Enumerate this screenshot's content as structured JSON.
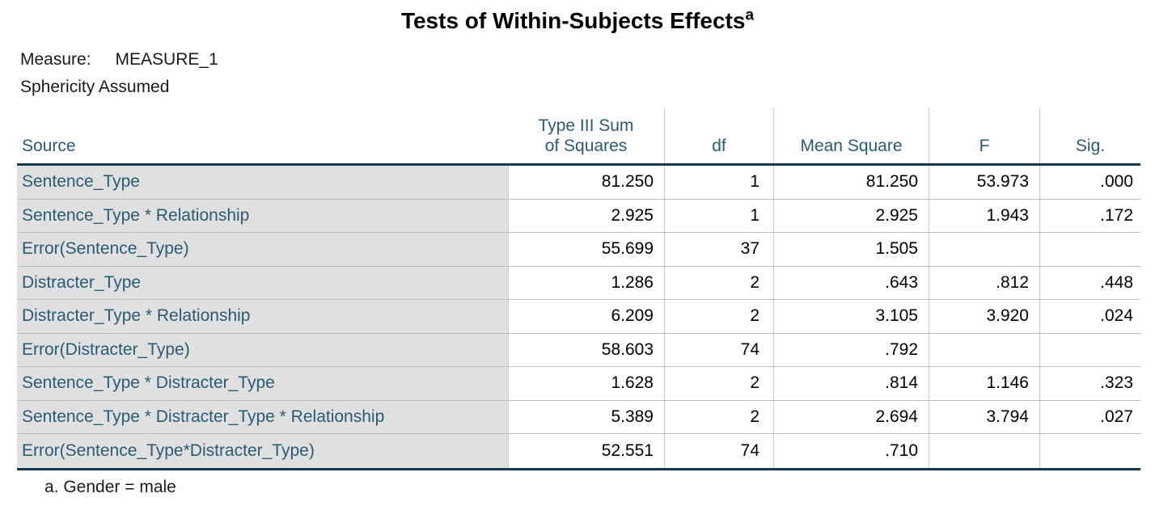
{
  "title": {
    "text": "Tests of Within-Subjects Effects",
    "superscript": "a"
  },
  "measure": {
    "label": "Measure:",
    "value": "MEASURE_1"
  },
  "sphericity": "Sphericity Assumed",
  "table": {
    "header": {
      "source": "Source",
      "ss_line1": "Type III Sum",
      "ss_line2": "of Squares",
      "df": "df",
      "mean_square": "Mean Square",
      "f": "F",
      "sig": "Sig."
    },
    "rows": [
      {
        "source": "Sentence_Type",
        "ss": "81.250",
        "df": "1",
        "ms": "81.250",
        "f": "53.973",
        "sig": ".000"
      },
      {
        "source": "Sentence_Type * Relationship",
        "ss": "2.925",
        "df": "1",
        "ms": "2.925",
        "f": "1.943",
        "sig": ".172"
      },
      {
        "source": "Error(Sentence_Type)",
        "ss": "55.699",
        "df": "37",
        "ms": "1.505",
        "f": "",
        "sig": ""
      },
      {
        "source": "Distracter_Type",
        "ss": "1.286",
        "df": "2",
        "ms": ".643",
        "f": ".812",
        "sig": ".448"
      },
      {
        "source": "Distracter_Type * Relationship",
        "ss": "6.209",
        "df": "2",
        "ms": "3.105",
        "f": "3.920",
        "sig": ".024"
      },
      {
        "source": "Error(Distracter_Type)",
        "ss": "58.603",
        "df": "74",
        "ms": ".792",
        "f": "",
        "sig": ""
      },
      {
        "source": "Sentence_Type * Distracter_Type",
        "ss": "1.628",
        "df": "2",
        "ms": ".814",
        "f": "1.146",
        "sig": ".323"
      },
      {
        "source": "Sentence_Type * Distracter_Type * Relationship",
        "ss": "5.389",
        "df": "2",
        "ms": "2.694",
        "f": "3.794",
        "sig": ".027"
      },
      {
        "source": "Error(Sentence_Type*Distracter_Type)",
        "ss": "52.551",
        "df": "74",
        "ms": ".710",
        "f": "",
        "sig": ""
      }
    ]
  },
  "footnote": "a. Gender = male",
  "colors": {
    "label_text": "#2a5b74",
    "header_rule": "#173a4d",
    "label_background": "#e0e0e0",
    "row_separator": "#bdbdbd",
    "column_separator": "#c9c9c9",
    "data_text": "#000000"
  },
  "chart_data": {
    "type": "table",
    "title": "Tests of Within-Subjects Effects (a)",
    "subtitle": [
      "Measure: MEASURE_1",
      "Sphericity Assumed"
    ],
    "columns": [
      "Source",
      "Type III Sum of Squares",
      "df",
      "Mean Square",
      "F",
      "Sig."
    ],
    "rows": [
      [
        "Sentence_Type",
        81.25,
        1,
        81.25,
        53.973,
        0.0
      ],
      [
        "Sentence_Type * Relationship",
        2.925,
        1,
        2.925,
        1.943,
        0.172
      ],
      [
        "Error(Sentence_Type)",
        55.699,
        37,
        1.505,
        null,
        null
      ],
      [
        "Distracter_Type",
        1.286,
        2,
        0.643,
        0.812,
        0.448
      ],
      [
        "Distracter_Type * Relationship",
        6.209,
        2,
        3.105,
        3.92,
        0.024
      ],
      [
        "Error(Distracter_Type)",
        58.603,
        74,
        0.792,
        null,
        null
      ],
      [
        "Sentence_Type * Distracter_Type",
        1.628,
        2,
        0.814,
        1.146,
        0.323
      ],
      [
        "Sentence_Type * Distracter_Type * Relationship",
        5.389,
        2,
        2.694,
        3.794,
        0.027
      ],
      [
        "Error(Sentence_Type*Distracter_Type)",
        52.551,
        74,
        0.71,
        null,
        null
      ]
    ],
    "footnote": "a. Gender = male"
  }
}
